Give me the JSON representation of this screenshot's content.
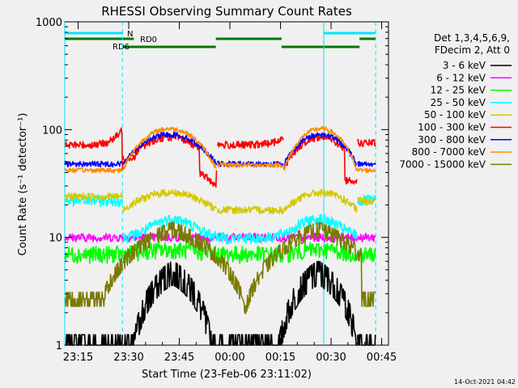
{
  "chart_data": {
    "type": "line",
    "title": "RHESSI Observing Summary Count Rates",
    "xlabel": "Start Time (23-Feb-06 23:11:02)",
    "ylabel": "Count Rate (s⁻¹ detector⁻¹)",
    "yscale": "log",
    "ylim": [
      1,
      1000
    ],
    "xlim_minutes_after_start": [
      0,
      96
    ],
    "x_ticks": [
      "23:15",
      "23:30",
      "23:45",
      "00:00",
      "00:15",
      "00:30",
      "00:45"
    ],
    "y_ticks": [
      "1",
      "10",
      "100",
      "1000"
    ],
    "legend_header": [
      "Det 1,3,4,5,6,9,",
      "FDecim 2, Att 0"
    ],
    "timestamp": "14-Oct-2021 04:42",
    "flags": [
      {
        "label": "N",
        "color": "#00e5ff"
      },
      {
        "label": "RD0",
        "color": "#007a00"
      },
      {
        "label": "RD6",
        "color": "#007a00"
      }
    ],
    "series": [
      {
        "name": "3 - 6 keV",
        "color": "#000000"
      },
      {
        "name": "6 - 12 keV",
        "color": "#ff00ff"
      },
      {
        "name": "12 - 25 keV",
        "color": "#00ff00"
      },
      {
        "name": "25 - 50 keV",
        "color": "#00ffff"
      },
      {
        "name": "50 - 100 keV",
        "color": "#d4c800"
      },
      {
        "name": "100 - 300 keV",
        "color": "#ff0000"
      },
      {
        "name": "300 - 800 keV",
        "color": "#0000ff"
      },
      {
        "name": "800 - 7000 keV",
        "color": "#ff8c00"
      },
      {
        "name": "7000 - 15000 keV",
        "color": "#7a7a00"
      }
    ]
  }
}
